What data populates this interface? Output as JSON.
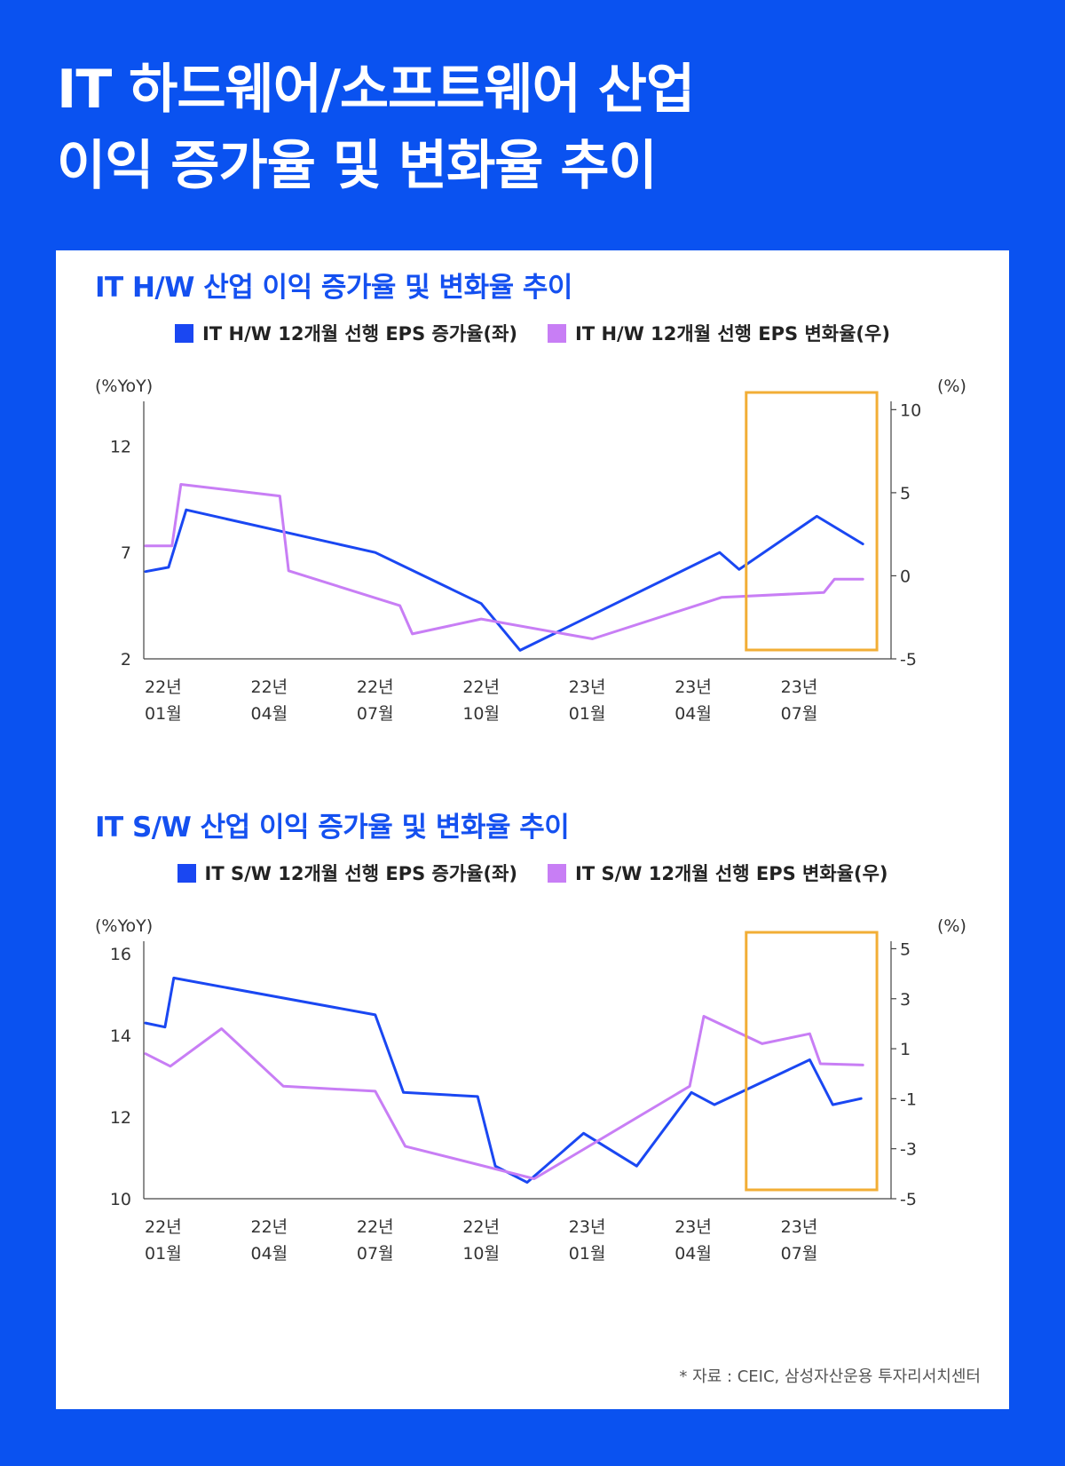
{
  "title_line1": "IT 하드웨어/소프트웨어 산업",
  "title_line2": "이익 증가율 및 변화율 추이",
  "source": "* 자료 : CEIC, 삼성자산운용 투자리서치센터",
  "colors": {
    "background": "#0a52f0",
    "series_left": "#1a47f2",
    "series_right": "#c87ef5",
    "highlight_box": "#f2ae36",
    "chart_title": "#1450f0"
  },
  "charts": [
    {
      "title": "IT H/W 산업 이익 증가율 및 변화율 추이",
      "legend_left": "IT H/W 12개월 선행 EPS 증가율(좌)",
      "legend_right": "IT H/W 12개월 선행 EPS 변화율(우)",
      "left_unit": "(%YoY)",
      "right_unit": "(%)"
    },
    {
      "title": "IT S/W 산업 이익 증가율 및 변화율 추이",
      "legend_left": "IT S/W 12개월 선행 EPS 증가율(좌)",
      "legend_right": "IT S/W 12개월 선행 EPS 변화율(우)",
      "left_unit": "(%YoY)",
      "right_unit": "(%)"
    }
  ],
  "chart_data": [
    {
      "type": "line",
      "title": "IT H/W 산업 이익 증가율 및 변화율 추이",
      "x_tick_labels": [
        {
          "x": 0,
          "year": "22년",
          "month": "01월"
        },
        {
          "x": 3,
          "year": "22년",
          "month": "04월"
        },
        {
          "x": 6,
          "year": "22년",
          "month": "07월"
        },
        {
          "x": 9,
          "year": "22년",
          "month": "10월"
        },
        {
          "x": 12,
          "year": "23년",
          "month": "01월"
        },
        {
          "x": 15,
          "year": "23년",
          "month": "04월"
        },
        {
          "x": 18,
          "year": "23년",
          "month": "07월"
        }
      ],
      "x_range": [
        -0.55,
        20.6
      ],
      "y_left": {
        "range": [
          2,
          14.1
        ],
        "ticks": [
          2,
          7,
          12
        ]
      },
      "y_right": {
        "range": [
          -5,
          10.5
        ],
        "ticks": [
          -5,
          0,
          5,
          10
        ]
      },
      "highlight_x_range": [
        16.5,
        20.2
      ],
      "series": [
        {
          "name": "IT H/W 12개월 선행 EPS 증가율(좌)",
          "axis": "left",
          "color": "#1a47f2",
          "x": [
            -0.5,
            0.15,
            0.65,
            6.0,
            9.0,
            10.1,
            15.75,
            16.3,
            18.5,
            19.8
          ],
          "y": [
            6.1,
            6.3,
            9.0,
            7.0,
            4.6,
            2.4,
            7.0,
            6.2,
            8.7,
            7.4
          ]
        },
        {
          "name": "IT H/W 12개월 선행 EPS 변화율(우)",
          "axis": "right",
          "color": "#c87ef5",
          "x": [
            -0.5,
            0.25,
            0.5,
            3.3,
            3.55,
            6.7,
            7.05,
            9.0,
            12.15,
            15.8,
            18.7,
            19.0,
            19.8
          ],
          "y": [
            1.8,
            1.8,
            5.5,
            4.8,
            0.3,
            -1.8,
            -3.5,
            -2.6,
            -3.8,
            -1.3,
            -1.0,
            -0.2,
            -0.2
          ]
        }
      ]
    },
    {
      "type": "line",
      "title": "IT S/W 산업 이익 증가율 및 변화율 추이",
      "x_tick_labels": [
        {
          "x": 0,
          "year": "22년",
          "month": "01월"
        },
        {
          "x": 3,
          "year": "22년",
          "month": "04월"
        },
        {
          "x": 6,
          "year": "22년",
          "month": "07월"
        },
        {
          "x": 9,
          "year": "22년",
          "month": "10월"
        },
        {
          "x": 12,
          "year": "23년",
          "month": "01월"
        },
        {
          "x": 15,
          "year": "23년",
          "month": "04월"
        },
        {
          "x": 18,
          "year": "23년",
          "month": "07월"
        }
      ],
      "x_range": [
        -0.55,
        20.6
      ],
      "y_left": {
        "range": [
          10,
          16.3
        ],
        "ticks": [
          10,
          12,
          14,
          16
        ]
      },
      "y_right": {
        "range": [
          -5,
          5.3
        ],
        "ticks": [
          -5,
          -3,
          -1,
          1,
          3,
          5
        ]
      },
      "highlight_x_range": [
        16.5,
        20.2
      ],
      "series": [
        {
          "name": "IT S/W 12개월 선행 EPS 증가율(좌)",
          "axis": "left",
          "color": "#1a47f2",
          "x": [
            -0.5,
            0.05,
            0.3,
            6.0,
            6.8,
            8.9,
            9.4,
            10.3,
            11.9,
            13.4,
            14.95,
            15.6,
            18.3,
            18.95,
            19.75
          ],
          "y": [
            14.3,
            14.2,
            15.4,
            14.5,
            12.6,
            12.5,
            10.8,
            10.4,
            11.6,
            10.8,
            12.6,
            12.3,
            13.4,
            12.3,
            12.45
          ]
        },
        {
          "name": "IT S/W 12개월 선행 EPS 변화율(우)",
          "axis": "right",
          "color": "#c87ef5",
          "x": [
            -0.5,
            0.2,
            1.65,
            3.4,
            6.0,
            6.85,
            10.5,
            14.9,
            15.3,
            16.95,
            18.3,
            18.6,
            19.8
          ],
          "y": [
            0.8,
            0.3,
            1.8,
            -0.5,
            -0.7,
            -2.9,
            -4.2,
            -0.5,
            2.3,
            1.2,
            1.6,
            0.4,
            0.35
          ]
        }
      ]
    }
  ]
}
